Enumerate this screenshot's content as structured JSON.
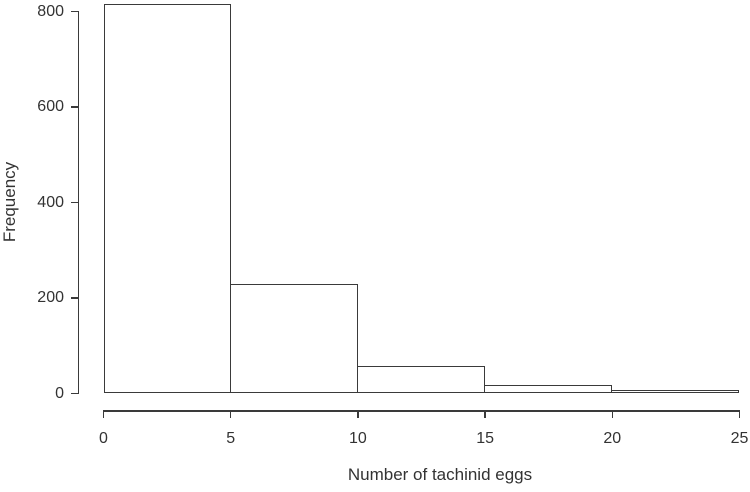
{
  "chart_data": {
    "type": "bar",
    "subtype": "histogram",
    "title": "",
    "xlabel": "Number of tachinid eggs",
    "ylabel": "Frequency",
    "bin_edges": [
      0,
      5,
      10,
      15,
      20,
      25
    ],
    "values": [
      815,
      230,
      57,
      17,
      7
    ],
    "x_ticks": [
      0,
      5,
      10,
      15,
      20,
      25
    ],
    "y_ticks": [
      0,
      200,
      400,
      600,
      800
    ],
    "xlim": [
      0,
      25
    ],
    "ylim": [
      0,
      800
    ],
    "grid": false,
    "legend": null,
    "bar_fill": "#ffffff",
    "bar_border": "#3a3a3a",
    "axis_color": "#3a3a3a",
    "text_color": "#333333",
    "background": "#ffffff"
  }
}
